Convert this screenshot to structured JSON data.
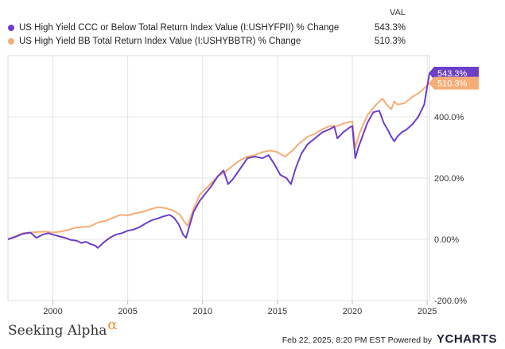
{
  "legend": {
    "value_header": "VAL",
    "items": [
      {
        "name": "US High Yield CCC or Below Total Return Index Value (I:USHYFPII) % Change",
        "value": "543.3%",
        "color": "#6b3fc9"
      },
      {
        "name": "US High Yield BB Total Return Index Value (I:USHYBBTR) % Change",
        "value": "510.3%",
        "color": "#f5ad77"
      }
    ]
  },
  "footer": {
    "brand": "Seeking Alpha",
    "brand_mark": "α",
    "timestamp": "Feb 22, 2025, 8:20 PM EST",
    "powered_by": "Powered by",
    "ycharts": "YCHARTS"
  },
  "chart_data": {
    "type": "line",
    "title": "",
    "xlabel": "",
    "ylabel": "",
    "xlim": [
      1997.0,
      2025.15
    ],
    "ylim": [
      -200,
      600
    ],
    "x_ticks": [
      2000,
      2005,
      2010,
      2015,
      2020,
      2025
    ],
    "x_tick_labels": [
      "2000",
      "2005",
      "2010",
      "2015",
      "2020",
      "2025"
    ],
    "y_ticks": [
      -200,
      0,
      200,
      400
    ],
    "y_tick_labels": [
      "-200.0%",
      "0.00%",
      "200.0%",
      "400.0%"
    ],
    "grid": true,
    "series": [
      {
        "name": "US High Yield CCC or Below Total Return Index Value (I:USHYFPII) % Change",
        "color": "#6b3fc9",
        "end_label": "543.3%",
        "x": [
          1997.0,
          1997.5,
          1998.0,
          1998.5,
          1998.9,
          1999.3,
          1999.7,
          2000.0,
          2000.4,
          2000.8,
          2001.2,
          2001.6,
          2001.9,
          2002.2,
          2002.5,
          2002.8,
          2003.0,
          2003.4,
          2003.8,
          2004.2,
          2004.6,
          2005.0,
          2005.4,
          2005.8,
          2006.2,
          2006.6,
          2007.0,
          2007.4,
          2007.8,
          2008.1,
          2008.4,
          2008.7,
          2008.9,
          2009.1,
          2009.4,
          2009.8,
          2010.2,
          2010.6,
          2011.0,
          2011.4,
          2011.7,
          2012.0,
          2012.5,
          2013.0,
          2013.5,
          2014.0,
          2014.4,
          2014.8,
          2015.2,
          2015.6,
          2015.9,
          2016.2,
          2016.6,
          2017.0,
          2017.5,
          2018.0,
          2018.5,
          2018.8,
          2019.0,
          2019.4,
          2019.8,
          2020.0,
          2020.2,
          2020.4,
          2020.7,
          2021.0,
          2021.4,
          2021.8,
          2022.1,
          2022.4,
          2022.6,
          2022.8,
          2023.0,
          2023.3,
          2023.6,
          2024.0,
          2024.4,
          2024.8,
          2025.15
        ],
        "values": [
          0,
          8,
          18,
          22,
          5,
          15,
          20,
          15,
          10,
          5,
          -2,
          -5,
          -12,
          -8,
          -15,
          -20,
          -28,
          -10,
          5,
          15,
          20,
          28,
          32,
          40,
          52,
          62,
          68,
          75,
          80,
          70,
          50,
          15,
          5,
          40,
          90,
          125,
          150,
          175,
          205,
          225,
          180,
          195,
          230,
          265,
          270,
          265,
          275,
          245,
          210,
          200,
          180,
          230,
          280,
          310,
          330,
          350,
          360,
          368,
          330,
          350,
          365,
          370,
          265,
          300,
          340,
          380,
          415,
          420,
          380,
          355,
          335,
          320,
          335,
          350,
          358,
          375,
          400,
          440,
          543
        ]
      },
      {
        "name": "US High Yield BB Total Return Index Value (I:USHYBBTR) % Change",
        "color": "#f5ad77",
        "end_label": "510.3%",
        "x": [
          1997.0,
          1997.5,
          1998.0,
          1998.5,
          1999.0,
          1999.5,
          2000.0,
          2000.5,
          2001.0,
          2001.5,
          2002.0,
          2002.5,
          2003.0,
          2003.5,
          2004.0,
          2004.5,
          2005.0,
          2005.5,
          2006.0,
          2006.5,
          2007.0,
          2007.5,
          2008.0,
          2008.5,
          2008.8,
          2009.0,
          2009.4,
          2009.8,
          2010.2,
          2010.6,
          2011.0,
          2011.5,
          2012.0,
          2012.5,
          2013.0,
          2013.5,
          2014.0,
          2014.5,
          2015.0,
          2015.5,
          2016.0,
          2016.5,
          2017.0,
          2017.5,
          2018.0,
          2018.5,
          2019.0,
          2019.5,
          2020.0,
          2020.2,
          2020.5,
          2021.0,
          2021.5,
          2022.0,
          2022.3,
          2022.6,
          2022.8,
          2023.0,
          2023.5,
          2024.0,
          2024.5,
          2025.15
        ],
        "values": [
          0,
          10,
          20,
          22,
          24,
          25,
          22,
          25,
          30,
          38,
          40,
          42,
          55,
          60,
          70,
          80,
          78,
          85,
          90,
          98,
          105,
          102,
          95,
          80,
          55,
          45,
          100,
          145,
          165,
          185,
          205,
          220,
          240,
          258,
          270,
          275,
          285,
          290,
          285,
          270,
          290,
          315,
          335,
          345,
          360,
          370,
          370,
          380,
          385,
          300,
          350,
          405,
          435,
          460,
          440,
          425,
          450,
          440,
          445,
          465,
          480,
          510
        ]
      }
    ]
  }
}
